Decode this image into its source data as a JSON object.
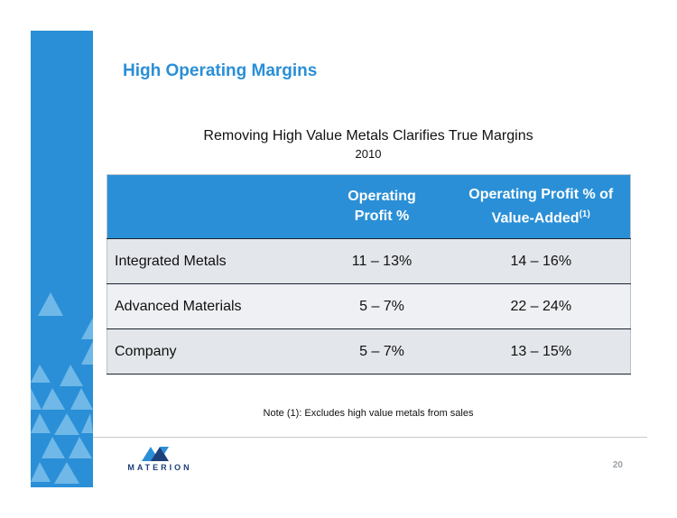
{
  "slide": {
    "title": "High Operating Margins",
    "subtitle": "Removing High Value Metals Clarifies True Margins",
    "year": "2010",
    "note": "Note (1): Excludes high value metals from sales",
    "page_number": "20",
    "logo_text": "MATERION"
  },
  "table": {
    "headers": [
      "",
      "Operating Profit %",
      "Operating Profit % of Value-Added"
    ],
    "header_col2_line1": "Operating",
    "header_col2_line2": "Profit %",
    "header_col3_line1": "Operating Profit % of",
    "header_col3_line2": "Value-Added",
    "header_col3_superscript": "(1)",
    "rows": [
      {
        "label": "Integrated Metals",
        "operating_profit": "11 – 13%",
        "value_added": "14 – 16%"
      },
      {
        "label": "Advanced Materials",
        "operating_profit": "5 – 7%",
        "value_added": "22 – 24%"
      },
      {
        "label": "Company",
        "operating_profit": "5 – 7%",
        "value_added": "13 – 15%"
      }
    ]
  },
  "colors": {
    "accent": "#2a8fd6",
    "row_shade": "#e3e6ea",
    "logo_navy": "#1d3f7a"
  }
}
